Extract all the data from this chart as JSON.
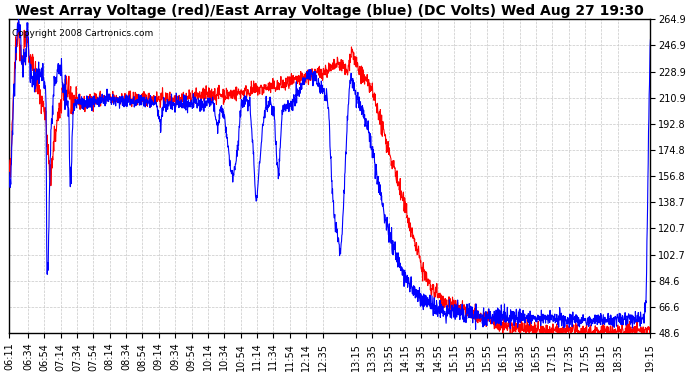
{
  "title": "West Array Voltage (red)/East Array Voltage (blue) (DC Volts) Wed Aug 27 19:30",
  "copyright": "Copyright 2008 Cartronics.com",
  "yticks": [
    264.9,
    246.9,
    228.9,
    210.9,
    192.8,
    174.8,
    156.8,
    138.7,
    120.7,
    102.7,
    84.6,
    66.6,
    48.6
  ],
  "xtick_labels": [
    "06:11",
    "06:34",
    "06:54",
    "07:14",
    "07:34",
    "07:54",
    "08:14",
    "08:34",
    "08:54",
    "09:14",
    "09:34",
    "09:54",
    "10:14",
    "10:34",
    "10:54",
    "11:14",
    "11:34",
    "11:54",
    "12:14",
    "12:35",
    "13:15",
    "13:35",
    "13:55",
    "14:15",
    "14:35",
    "14:55",
    "15:15",
    "15:35",
    "15:55",
    "16:15",
    "16:35",
    "16:55",
    "17:15",
    "17:35",
    "17:55",
    "18:15",
    "18:35",
    "19:15"
  ],
  "ymin": 48.6,
  "ymax": 264.9,
  "red_color": "#FF0000",
  "blue_color": "#0000FF",
  "bg_color": "#FFFFFF",
  "grid_color": "#C8C8C8",
  "title_fontsize": 10,
  "copyright_fontsize": 6.5,
  "tick_fontsize": 7,
  "linewidth": 0.8
}
